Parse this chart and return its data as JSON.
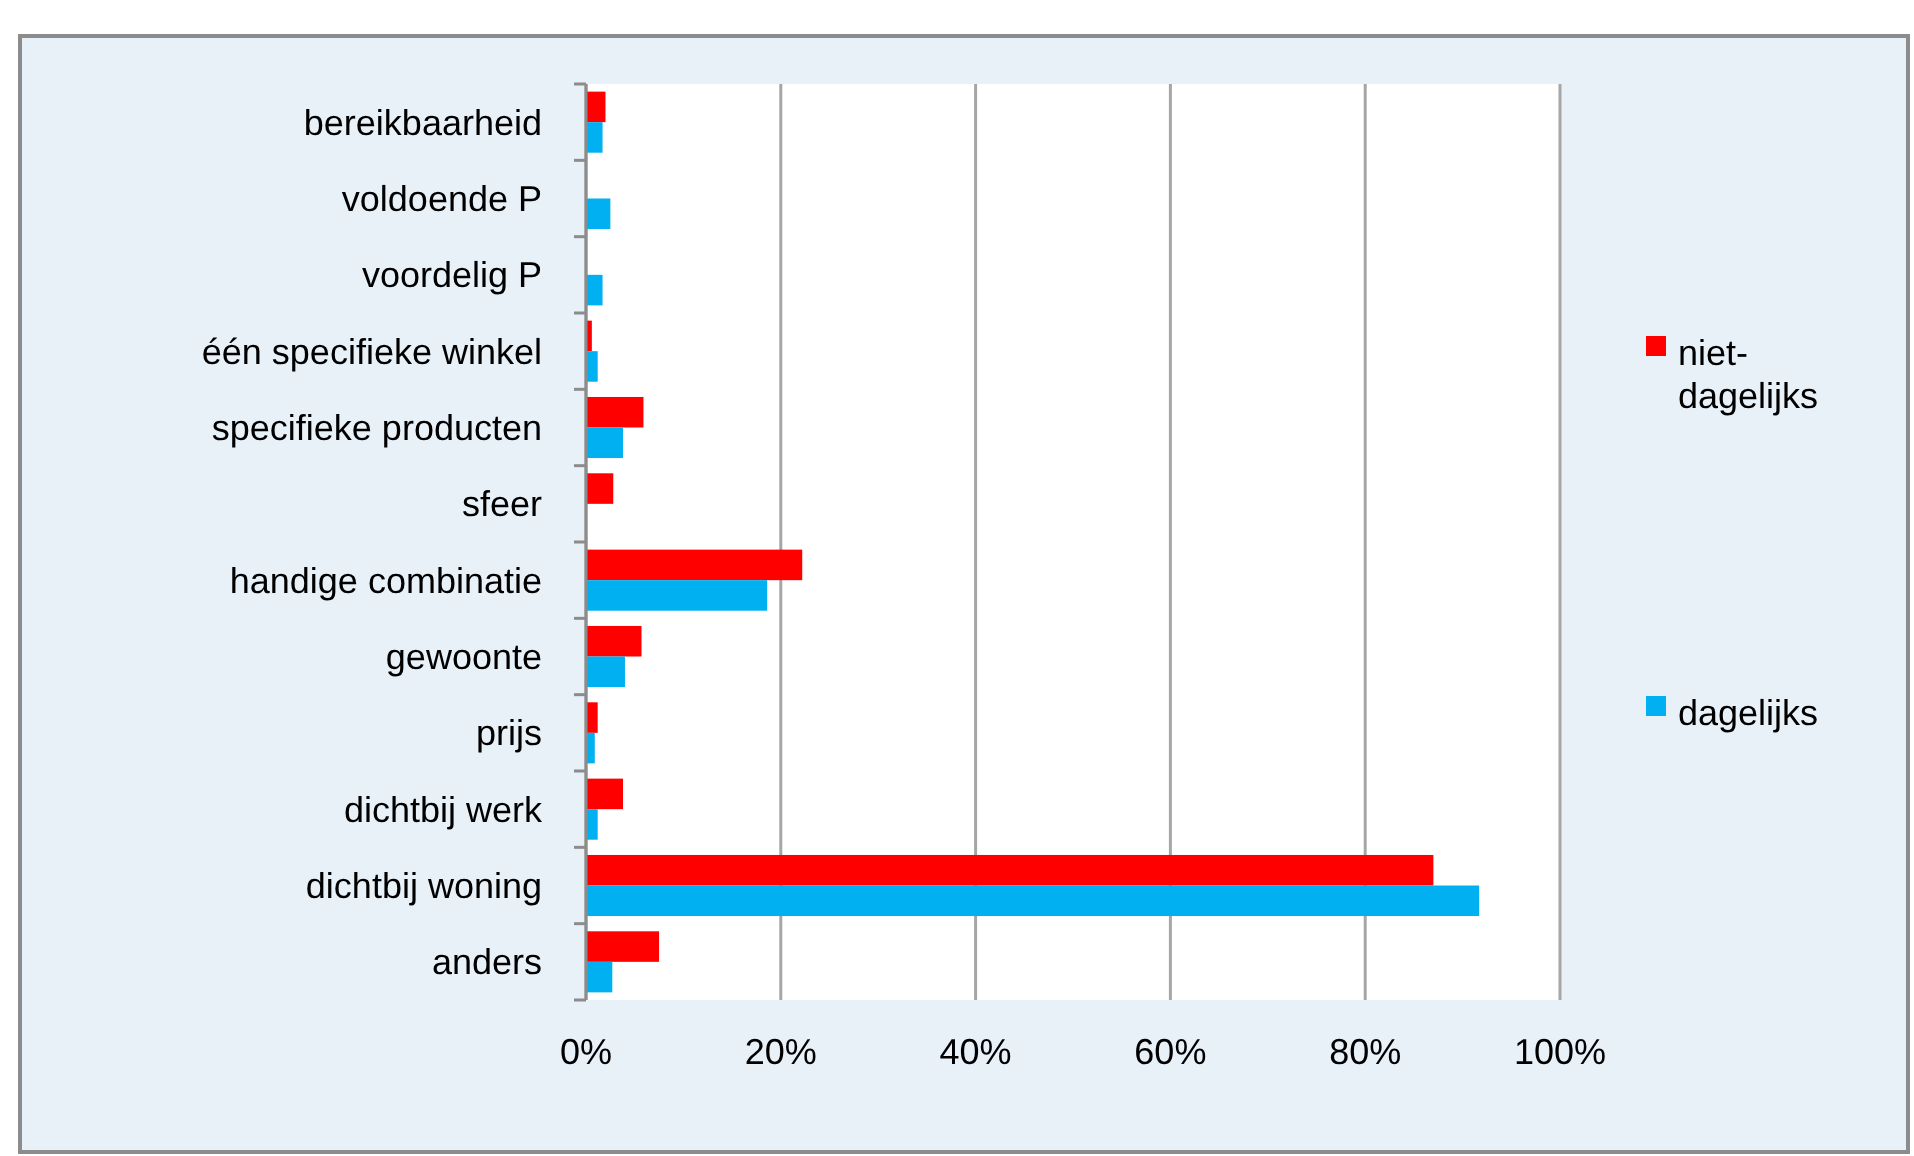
{
  "chart_data": {
    "type": "bar",
    "orientation": "horizontal",
    "categories": [
      "bereikbaarheid",
      "voldoende P",
      "voordelig P",
      "één specifieke winkel",
      "specifieke producten",
      "sfeer",
      "handige combinatie",
      "gewoonte",
      "prijs",
      "dichtbij werk",
      "dichtbij woning",
      "anders"
    ],
    "series": [
      {
        "name": "niet-dagelijks",
        "color": "#ff0000",
        "values": [
          2.0,
          null,
          null,
          0.6,
          5.9,
          2.8,
          22.2,
          5.7,
          1.2,
          3.8,
          87.0,
          7.5
        ]
      },
      {
        "name": "dagelijks",
        "color": "#00b0f0",
        "values": [
          1.7,
          2.5,
          1.7,
          1.2,
          3.8,
          null,
          18.6,
          4.0,
          0.9,
          1.2,
          91.7,
          2.7
        ]
      }
    ],
    "xlim": [
      0,
      100
    ],
    "xticks": [
      {
        "value": 0,
        "label": "0%"
      },
      {
        "value": 20,
        "label": "20%"
      },
      {
        "value": 40,
        "label": "40%"
      },
      {
        "value": 60,
        "label": "60%"
      },
      {
        "value": 80,
        "label": "80%"
      },
      {
        "value": 100,
        "label": "100%"
      }
    ],
    "grid": "x",
    "legend": "right"
  }
}
